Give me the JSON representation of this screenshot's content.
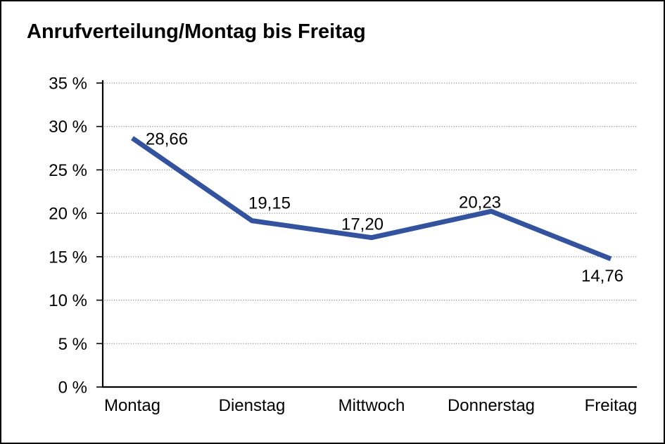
{
  "window": {
    "background_color": "#ffffff",
    "frame_border_color": "#000000"
  },
  "chart_data": {
    "type": "line",
    "title": "Anrufverteilung/Montag bis Freitag",
    "categories": [
      "Montag",
      "Dienstag",
      "Mittwoch",
      "Donnerstag",
      "Freitag"
    ],
    "values": [
      28.66,
      19.15,
      17.2,
      20.23,
      14.76
    ],
    "value_labels": [
      "28,66",
      "19,15",
      "17,20",
      "20,23",
      "14,76"
    ],
    "xlabel": "",
    "ylabel": "",
    "y_axis": {
      "min": 0,
      "max": 35,
      "step": 5,
      "tick_labels": [
        "0 %",
        "5 %",
        "10 %",
        "15 %",
        "20 %",
        "25 %",
        "30 %",
        "35 %"
      ]
    },
    "grid": "horizontal-dotted",
    "legend": "none",
    "line_color": "#34539F",
    "gridline_color": "#595959",
    "axis_color": "#000000",
    "text_color": "#000000"
  }
}
